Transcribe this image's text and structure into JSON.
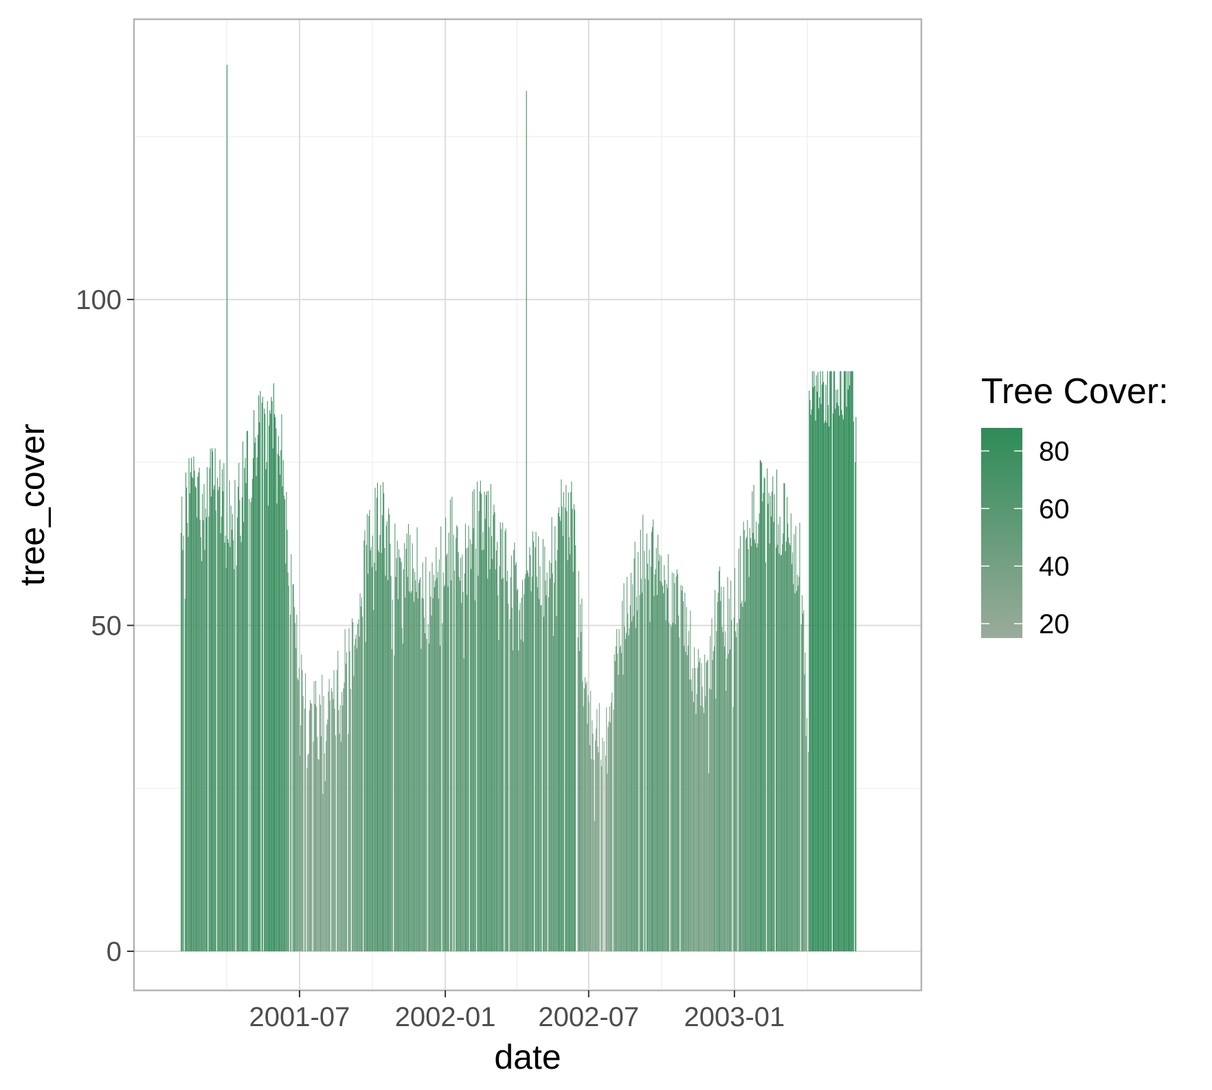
{
  "chart_data": {
    "type": "bar",
    "xlabel": "date",
    "ylabel": "tree_cover",
    "x_ticks": [
      "2001-07",
      "2002-01",
      "2002-07",
      "2003-01"
    ],
    "y_ticks": [
      0,
      50,
      100
    ],
    "ylim": [
      -6,
      143
    ],
    "xlim": [
      "2000-12-04",
      "2003-08-25"
    ],
    "grid": true,
    "legend": {
      "title": "Tree Cover:",
      "position": "right",
      "type": "colorbar",
      "range": [
        15,
        88
      ],
      "ticks": [
        20,
        40,
        60,
        80
      ],
      "color_low": "#9aab9b",
      "color_high": "#2e8b57"
    },
    "series_points": [
      [
        "2001-02-01",
        65
      ],
      [
        "2001-02-15",
        70
      ],
      [
        "2001-03-01",
        64
      ],
      [
        "2001-03-10",
        72
      ],
      [
        "2001-03-20",
        68
      ],
      [
        "2001-03-31",
        136
      ],
      [
        "2001-04-01",
        66
      ],
      [
        "2001-04-15",
        70
      ],
      [
        "2001-05-01",
        74
      ],
      [
        "2001-05-15",
        79
      ],
      [
        "2001-06-01",
        78
      ],
      [
        "2001-06-12",
        72
      ],
      [
        "2001-06-20",
        52
      ],
      [
        "2001-06-30",
        40
      ],
      [
        "2001-07-10",
        33
      ],
      [
        "2001-07-25",
        34
      ],
      [
        "2001-08-10",
        36
      ],
      [
        "2001-08-25",
        40
      ],
      [
        "2001-09-10",
        48
      ],
      [
        "2001-09-25",
        60
      ],
      [
        "2001-10-10",
        66
      ],
      [
        "2001-10-25",
        58
      ],
      [
        "2001-11-10",
        56
      ],
      [
        "2001-11-25",
        58
      ],
      [
        "2001-12-10",
        52
      ],
      [
        "2001-12-25",
        56
      ],
      [
        "2002-01-10",
        62
      ],
      [
        "2002-01-25",
        56
      ],
      [
        "2002-02-10",
        66
      ],
      [
        "2002-02-25",
        64
      ],
      [
        "2002-03-10",
        58
      ],
      [
        "2002-03-25",
        55
      ],
      [
        "2002-04-10",
        52
      ],
      [
        "2002-04-13",
        132
      ],
      [
        "2002-04-25",
        58
      ],
      [
        "2002-05-10",
        55
      ],
      [
        "2002-05-25",
        64
      ],
      [
        "2002-06-10",
        64
      ],
      [
        "2002-06-20",
        48
      ],
      [
        "2002-07-01",
        35
      ],
      [
        "2002-07-10",
        30
      ],
      [
        "2002-07-25",
        34
      ],
      [
        "2002-08-10",
        46
      ],
      [
        "2002-08-25",
        52
      ],
      [
        "2002-09-10",
        62
      ],
      [
        "2002-09-25",
        56
      ],
      [
        "2002-10-10",
        54
      ],
      [
        "2002-10-25",
        52
      ],
      [
        "2002-11-10",
        42
      ],
      [
        "2002-11-25",
        38
      ],
      [
        "2002-12-10",
        52
      ],
      [
        "2002-12-25",
        48
      ],
      [
        "2003-01-10",
        56
      ],
      [
        "2003-01-25",
        64
      ],
      [
        "2003-02-10",
        70
      ],
      [
        "2003-02-25",
        66
      ],
      [
        "2003-03-10",
        62
      ],
      [
        "2003-03-25",
        58
      ],
      [
        "2003-04-02",
        30
      ],
      [
        "2003-04-08",
        86
      ],
      [
        "2003-04-25",
        85
      ],
      [
        "2003-05-10",
        86
      ],
      [
        "2003-05-25",
        87
      ],
      [
        "2003-06-03",
        85
      ]
    ]
  }
}
